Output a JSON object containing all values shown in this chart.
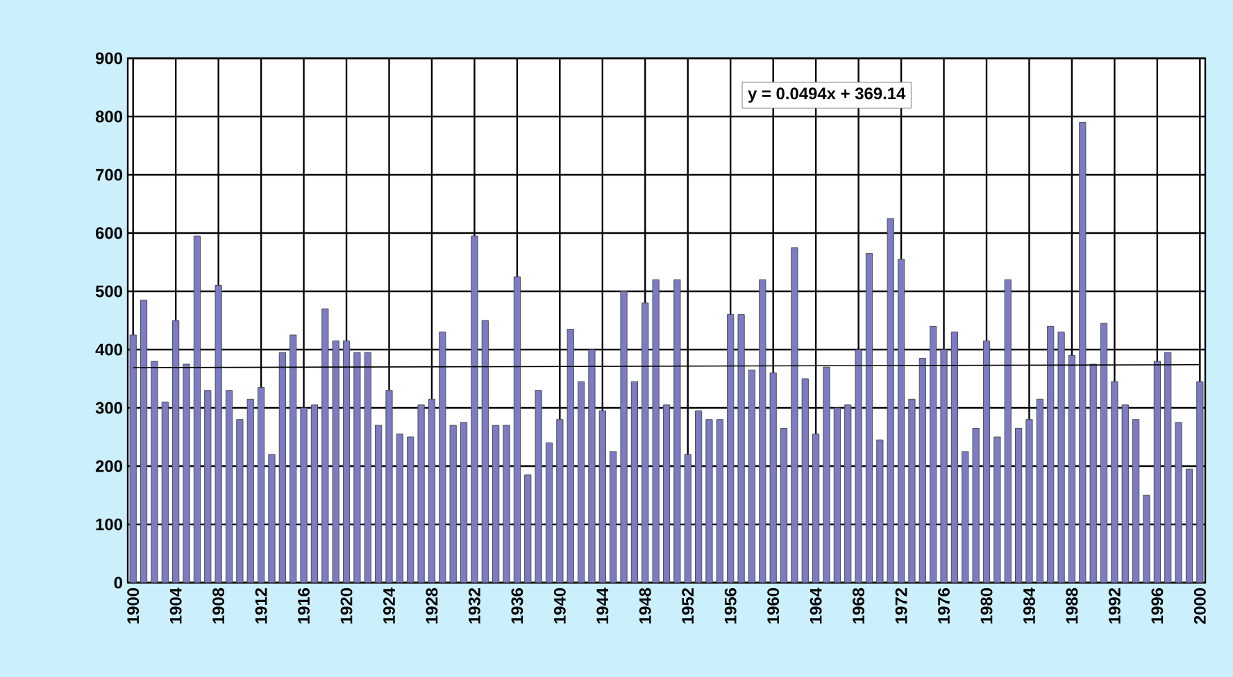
{
  "chart_data": {
    "type": "bar",
    "x": [
      1900,
      1901,
      1902,
      1903,
      1904,
      1905,
      1906,
      1907,
      1908,
      1909,
      1910,
      1911,
      1912,
      1913,
      1914,
      1915,
      1916,
      1917,
      1918,
      1919,
      1920,
      1921,
      1922,
      1923,
      1924,
      1925,
      1926,
      1927,
      1928,
      1929,
      1930,
      1931,
      1932,
      1933,
      1934,
      1935,
      1936,
      1937,
      1938,
      1939,
      1940,
      1941,
      1942,
      1943,
      1944,
      1945,
      1946,
      1947,
      1948,
      1949,
      1950,
      1951,
      1952,
      1953,
      1954,
      1955,
      1956,
      1957,
      1958,
      1959,
      1960,
      1961,
      1962,
      1963,
      1964,
      1965,
      1966,
      1967,
      1968,
      1969,
      1970,
      1971,
      1972,
      1973,
      1974,
      1975,
      1976,
      1977,
      1978,
      1979,
      1980,
      1981,
      1982,
      1983,
      1984,
      1985,
      1986,
      1987,
      1988,
      1989,
      1990,
      1991,
      1992,
      1993,
      1994,
      1995,
      1996,
      1997,
      1998,
      1999,
      2000
    ],
    "series": [
      {
        "color": "#7b7bc6",
        "values": [
          425,
          485,
          380,
          310,
          450,
          375,
          595,
          330,
          510,
          330,
          280,
          315,
          335,
          220,
          395,
          425,
          300,
          305,
          470,
          415,
          415,
          395,
          395,
          270,
          330,
          255,
          250,
          305,
          315,
          430,
          270,
          275,
          595,
          450,
          270,
          270,
          525,
          185,
          330,
          240,
          280,
          435,
          345,
          400,
          295,
          225,
          500,
          345,
          480,
          520,
          305,
          520,
          220,
          295,
          280,
          280,
          460,
          460,
          365,
          520,
          360,
          265,
          575,
          350,
          255,
          370,
          300,
          305,
          400,
          565,
          245,
          625,
          555,
          315,
          385,
          440,
          400,
          430,
          225,
          265,
          415,
          250,
          520,
          265,
          280,
          315,
          440,
          430,
          390,
          790,
          375,
          445,
          345,
          305,
          280,
          150,
          380,
          395,
          275,
          195,
          345
        ]
      },
      {
        "type": "line",
        "color": "#000000",
        "x": [
          1900,
          2000
        ],
        "values": [
          369,
          374
        ]
      }
    ],
    "xlim": [
      1899.5,
      2000.5
    ],
    "xticks": [
      1900,
      1904,
      1908,
      1912,
      1916,
      1920,
      1924,
      1928,
      1932,
      1936,
      1940,
      1944,
      1948,
      1952,
      1956,
      1960,
      1964,
      1968,
      1972,
      1976,
      1980,
      1984,
      1988,
      1992,
      1996,
      2000
    ],
    "ylim": [
      0,
      900
    ],
    "yticks": [
      0,
      100,
      200,
      300,
      400,
      500,
      600,
      700,
      800,
      900
    ],
    "grid": true,
    "annotations": [
      "y = 0.0494x + 369.14"
    ]
  }
}
